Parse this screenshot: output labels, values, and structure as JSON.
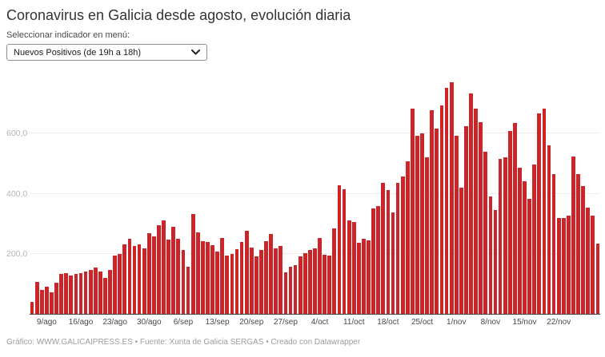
{
  "header": {
    "title": "Coronavirus en Galicia desde agosto, evolución diaria",
    "selector_label": "Seleccionar indicador en menú:",
    "selector_value": "Nuevos Positivos (de 19h a 18h)"
  },
  "footer": {
    "credit": "Gráfico: WWW.GALICAIPRESS.ES • Fuente: Xunta de Galicia SERGAS • Creado con Datawrapper"
  },
  "colors": {
    "bar": "#cc2529",
    "axis_line": "#4a4a4a",
    "gridline": "#ededed",
    "y_label": "#b3b3b3",
    "x_label": "#494949"
  },
  "chart_data": {
    "type": "bar",
    "title": "Coronavirus en Galicia desde agosto, evolución diaria",
    "indicator": "Nuevos Positivos (de 19h a 18h)",
    "ylim": [
      0,
      783
    ],
    "grid": "horizontal-faint",
    "legend": "none",
    "y_ticks": [
      {
        "value": 200,
        "label": "200,0"
      },
      {
        "value": 400,
        "label": "400,0"
      },
      {
        "value": 600,
        "label": "600,0"
      }
    ],
    "x_ticks": [
      {
        "index": 3,
        "label": "9/ago"
      },
      {
        "index": 10,
        "label": "16/ago"
      },
      {
        "index": 17,
        "label": "23/ago"
      },
      {
        "index": 24,
        "label": "30/ago"
      },
      {
        "index": 31,
        "label": "6/sep"
      },
      {
        "index": 38,
        "label": "13/sep"
      },
      {
        "index": 45,
        "label": "20/sep"
      },
      {
        "index": 52,
        "label": "27/sep"
      },
      {
        "index": 59,
        "label": "4/oct"
      },
      {
        "index": 66,
        "label": "11/oct"
      },
      {
        "index": 73,
        "label": "18/oct"
      },
      {
        "index": 80,
        "label": "25/oct"
      },
      {
        "index": 87,
        "label": "1/nov"
      },
      {
        "index": 94,
        "label": "8/nov"
      },
      {
        "index": 101,
        "label": "15/nov"
      },
      {
        "index": 108,
        "label": "22/nov"
      }
    ],
    "x": [
      "6/ago",
      "7/ago",
      "8/ago",
      "9/ago",
      "10/ago",
      "11/ago",
      "12/ago",
      "13/ago",
      "14/ago",
      "15/ago",
      "16/ago",
      "17/ago",
      "18/ago",
      "19/ago",
      "20/ago",
      "21/ago",
      "22/ago",
      "23/ago",
      "24/ago",
      "25/ago",
      "26/ago",
      "27/ago",
      "28/ago",
      "29/ago",
      "30/ago",
      "31/ago",
      "1/sep",
      "2/sep",
      "3/sep",
      "4/sep",
      "5/sep",
      "6/sep",
      "7/sep",
      "8/sep",
      "9/sep",
      "10/sep",
      "11/sep",
      "12/sep",
      "13/sep",
      "14/sep",
      "15/sep",
      "16/sep",
      "17/sep",
      "18/sep",
      "19/sep",
      "20/sep",
      "21/sep",
      "22/sep",
      "23/sep",
      "24/sep",
      "25/sep",
      "26/sep",
      "27/sep",
      "28/sep",
      "29/sep",
      "30/sep",
      "1/oct",
      "2/oct",
      "3/oct",
      "4/oct",
      "5/oct",
      "6/oct",
      "7/oct",
      "8/oct",
      "9/oct",
      "10/oct",
      "11/oct",
      "12/oct",
      "13/oct",
      "14/oct",
      "15/oct",
      "16/oct",
      "17/oct",
      "18/oct",
      "19/oct",
      "20/oct",
      "21/oct",
      "22/oct",
      "23/oct",
      "24/oct",
      "25/oct",
      "26/oct",
      "27/oct",
      "28/oct",
      "29/oct",
      "30/oct",
      "31/oct",
      "1/nov",
      "2/nov",
      "3/nov",
      "4/nov",
      "5/nov",
      "6/nov",
      "7/nov",
      "8/nov",
      "9/nov",
      "10/nov",
      "11/nov",
      "12/nov",
      "13/nov",
      "14/nov",
      "15/nov",
      "16/nov",
      "17/nov",
      "18/nov",
      "19/nov",
      "20/nov",
      "21/nov",
      "22/nov",
      "23/nov",
      "24/nov",
      "25/nov",
      "26/nov",
      "27/nov",
      "28/nov",
      "29/nov",
      "30/nov"
    ],
    "values": [
      42,
      108,
      82,
      91,
      74,
      104,
      133,
      136,
      129,
      133,
      136,
      141,
      148,
      156,
      143,
      121,
      146,
      196,
      200,
      232,
      250,
      227,
      232,
      218,
      270,
      259,
      295,
      310,
      249,
      289,
      251,
      212,
      158,
      332,
      271,
      242,
      239,
      230,
      209,
      252,
      196,
      199,
      215,
      239,
      278,
      220,
      192,
      214,
      242,
      265,
      219,
      227,
      138,
      158,
      163,
      191,
      202,
      214,
      219,
      252,
      197,
      195,
      285,
      428,
      414,
      310,
      305,
      237,
      250,
      245,
      350,
      360,
      436,
      411,
      339,
      437,
      457,
      508,
      683,
      591,
      600,
      520,
      677,
      615,
      692,
      751,
      770,
      593,
      421,
      624,
      732,
      682,
      637,
      538,
      390,
      346,
      514,
      520,
      607,
      635,
      487,
      441,
      384,
      498,
      666,
      683,
      559,
      465,
      320,
      318,
      326,
      523,
      464,
      424,
      353,
      327,
      235
    ]
  }
}
